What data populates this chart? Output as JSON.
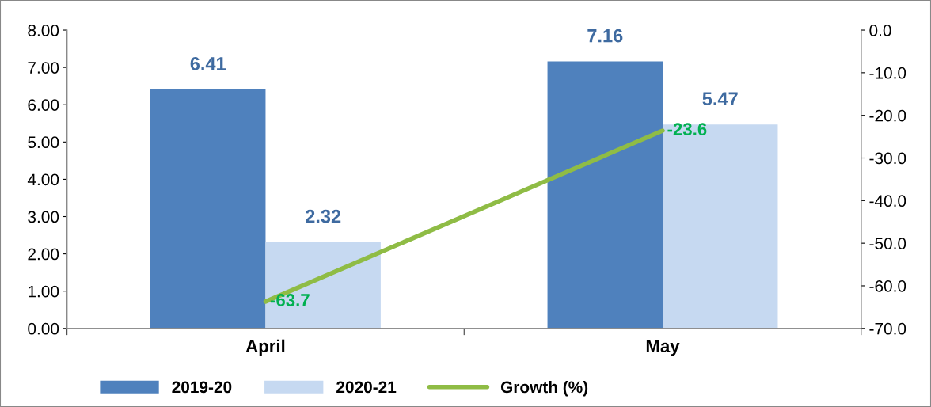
{
  "chart_data": {
    "type": "bar",
    "categories": [
      "April",
      "May"
    ],
    "series": [
      {
        "name": "2019-20",
        "color": "#4f81bd",
        "values": [
          6.41,
          7.16
        ]
      },
      {
        "name": "2020-21",
        "color": "#c6d9f1",
        "values": [
          2.32,
          5.47
        ]
      },
      {
        "name": "Growth (%)",
        "type": "line",
        "axis": "y2",
        "color": "#8fbc45",
        "values": [
          -63.7,
          -23.6
        ]
      }
    ],
    "data_labels": true,
    "legend": "bottom",
    "grid": false,
    "ylim": [
      0,
      8
    ],
    "yticks": [
      {
        "value": 0,
        "label": "0.00"
      },
      {
        "value": 1,
        "label": "1.00"
      },
      {
        "value": 2,
        "label": "2.00"
      },
      {
        "value": 3,
        "label": "3.00"
      },
      {
        "value": 4,
        "label": "4.00"
      },
      {
        "value": 5,
        "label": "5.00"
      },
      {
        "value": 6,
        "label": "6.00"
      },
      {
        "value": 7,
        "label": "7.00"
      },
      {
        "value": 8,
        "label": "8.00"
      }
    ],
    "y2lim": [
      -70,
      0
    ],
    "y2ticks": [
      {
        "value": -70,
        "label": "-70.0"
      },
      {
        "value": -60,
        "label": "-60.0"
      },
      {
        "value": -50,
        "label": "-50.0"
      },
      {
        "value": -40,
        "label": "-40.0"
      },
      {
        "value": -30,
        "label": "-30.0"
      },
      {
        "value": -20,
        "label": "-20.0"
      },
      {
        "value": -10,
        "label": "-10.0"
      },
      {
        "value": 0,
        "label": "0.0"
      }
    ]
  }
}
